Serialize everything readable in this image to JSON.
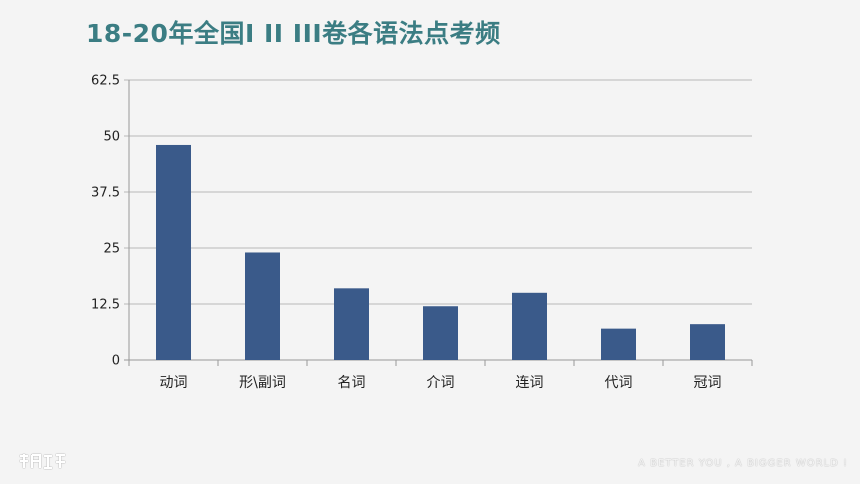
{
  "slide": {
    "title": "18-20年全国I II III卷各语法点考频",
    "tagline": "A BETTER YOU , A BIGGER WORLD !",
    "logo_icon": "brand-logo-icon"
  },
  "chart_data": {
    "type": "bar",
    "categories": [
      "动词",
      "形\\副词",
      "名词",
      "介词",
      "连词",
      "代词",
      "冠词"
    ],
    "values": [
      48,
      24,
      16,
      12,
      15,
      7,
      8
    ],
    "yticks": [
      "0",
      "12.5",
      "25",
      "37.5",
      "50",
      "62.5"
    ],
    "ylim": [
      0,
      62.5
    ],
    "grid": true,
    "bar_color": "#3a5a8a",
    "title": "",
    "xlabel": "",
    "ylabel": ""
  }
}
